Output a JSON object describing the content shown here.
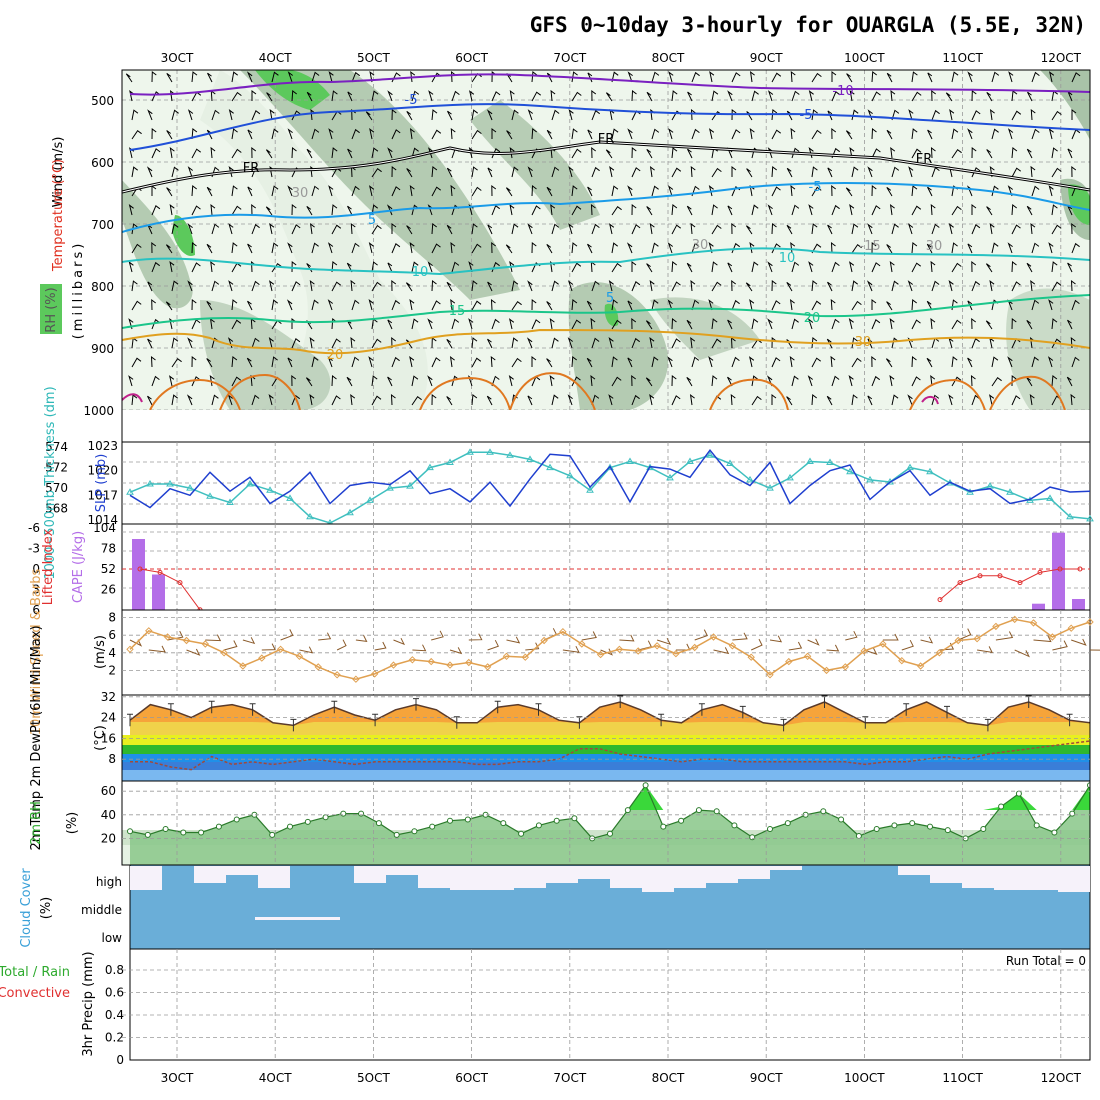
{
  "title": "GFS 0~10day 3-hourly for OUARGLA (5.5E, 32N)",
  "x_ticks": [
    "3OCT",
    "4OCT",
    "5OCT",
    "6OCT",
    "7OCT",
    "8OCT",
    "9OCT",
    "10OCT",
    "11OCT",
    "12OCT"
  ],
  "colors": {
    "frame": "#000000",
    "grid": "#9a9a9a",
    "rh_shade": "#5cc95c",
    "cloud": "#6aaed8",
    "cape_bar": "#b46ee8",
    "slp_line": "#1f3fcf",
    "thick_line": "#3fbfbf",
    "wind_speed": "#e0a050",
    "rh2m": "#3a9a3a"
  },
  "panels": {
    "upper": {
      "label_wind": "Wind (m/s)",
      "label_temp": "Temperature (°C)",
      "label_rh": "RH (%)",
      "ylabel": "(millibars)",
      "y_ticks": [
        "500",
        "600",
        "700",
        "800",
        "900",
        "1000"
      ],
      "contour_labels": [
        "-10",
        "-5",
        "-5",
        "FR",
        "FR",
        "FR",
        "-5",
        "5",
        "5",
        "10",
        "10",
        "-15",
        "15",
        "20",
        "20",
        "30",
        "30",
        "30",
        "30"
      ]
    },
    "thick_slp": {
      "label_left": "1000~500mb Thickness (dm)",
      "label_right": "SLP (mb)",
      "y_ticks_left": [
        "574",
        "572",
        "570",
        "568"
      ],
      "y_ticks_right": [
        "1023",
        "1020",
        "1017",
        "1014"
      ]
    },
    "cape": {
      "label_left": "Lifted Index",
      "label_right": "CAPE (J/kg)",
      "y_ticks_left": [
        "-6",
        "-3",
        "0",
        "3",
        "6"
      ],
      "y_ticks_right": [
        "104",
        "78",
        "52",
        "26"
      ]
    },
    "wind10": {
      "label": "10m Wind Speed & Barbs",
      "unit": "(m/s)",
      "y_ticks": [
        "8",
        "6",
        "4",
        "2"
      ]
    },
    "temp2m": {
      "label": "2m Temp 2m DewPt (6hr Min/Max)",
      "unit": "(°C)",
      "y_ticks": [
        "32",
        "24",
        "16",
        "8"
      ]
    },
    "rh2m": {
      "label": "2m RH",
      "unit": "(%)",
      "y_ticks": [
        "60",
        "40",
        "20"
      ]
    },
    "cloud": {
      "label": "Cloud Cover",
      "unit": "(%)",
      "levels": [
        "high",
        "middle",
        "low"
      ]
    },
    "precip": {
      "label_a": "Total / Rain",
      "label_b": "Convective",
      "ylabel": "3hr Precip (mm)",
      "y_ticks": [
        "0.8",
        "0.6",
        "0.4",
        "0.2",
        "0"
      ],
      "run_total": "Run Total = 0"
    }
  },
  "chart_data": [
    {
      "type": "line",
      "name": "thickness_slp",
      "series": [
        {
          "name": "1000~500mb Thickness (dm)",
          "values": [
            569.6,
            570.4,
            570.4,
            570.0,
            569.2,
            568.6,
            570.4,
            569.8,
            569.0,
            567.2,
            566.6,
            567.6,
            568.8,
            570.0,
            570.2,
            572.0,
            572.5,
            573.5,
            573.5,
            573.2,
            572.8,
            572.0,
            571.2,
            569.8,
            572.0,
            572.6,
            572.0,
            571.0,
            572.6,
            573.2,
            572.4,
            570.8,
            570.0,
            571.0,
            572.6,
            572.5,
            571.6,
            570.8,
            570.6,
            572.0,
            571.6,
            570.5,
            569.6,
            570.2,
            569.6,
            568.8,
            569.0,
            567.2,
            567.0
          ]
        },
        {
          "name": "SLP (mb)",
          "values": [
            1017.0,
            1015.5,
            1017.8,
            1017.0,
            1019.8,
            1017.5,
            1019.2,
            1016.0,
            1017.5,
            1019.8,
            1016.0,
            1018.2,
            1018.6,
            1018.3,
            1020.0,
            1017.2,
            1017.8,
            1016.2,
            1018.6,
            1015.7,
            1019.0,
            1022.0,
            1021.8,
            1018.0,
            1020.5,
            1016.2,
            1020.5,
            1020.2,
            1019.2,
            1022.5,
            1019.5,
            1018.2,
            1021.0,
            1016.0,
            1018.2,
            1020.0,
            1020.7,
            1016.5,
            1018.6,
            1020.0,
            1017.0,
            1018.6,
            1017.5,
            1017.8,
            1016.0,
            1016.5,
            1018.0,
            1017.4,
            1017.5
          ]
        }
      ]
    },
    {
      "type": "bar",
      "name": "cape_lifted_index",
      "series": [
        {
          "name": "CAPE (J/kg)",
          "values": [
            90,
            45,
            0,
            0,
            0,
            0,
            0,
            0,
            0,
            0,
            0,
            0,
            0,
            0,
            0,
            0,
            0,
            0,
            0,
            0,
            0,
            0,
            0,
            0,
            0,
            0,
            0,
            0,
            0,
            0,
            0,
            0,
            0,
            0,
            0,
            0,
            0,
            0,
            0,
            0,
            0,
            0,
            0,
            0,
            0,
            8,
            98,
            14
          ]
        },
        {
          "name": "Lifted Index",
          "values": [
            0,
            0.5,
            2,
            6,
            null,
            null,
            null,
            null,
            null,
            null,
            null,
            null,
            null,
            null,
            null,
            null,
            null,
            null,
            null,
            null,
            null,
            null,
            null,
            null,
            null,
            null,
            null,
            null,
            null,
            null,
            null,
            null,
            null,
            null,
            null,
            null,
            null,
            null,
            null,
            null,
            4.5,
            2,
            1,
            1,
            2,
            0.5,
            0,
            0
          ]
        }
      ]
    },
    {
      "type": "line",
      "name": "wind10_speed",
      "series": [
        {
          "name": "10m Wind Speed",
          "values": [
            4.4,
            6.5,
            5.8,
            5.4,
            5.0,
            4.0,
            2.5,
            3.4,
            4.4,
            3.6,
            2.4,
            1.5,
            1.0,
            1.6,
            2.6,
            3.2,
            3.0,
            2.6,
            2.9,
            2.4,
            3.6,
            3.5,
            5.4,
            6.4,
            5.0,
            3.8,
            4.4,
            4.2,
            4.8,
            3.9,
            4.6,
            5.8,
            4.8,
            3.5,
            1.5,
            3.0,
            3.6,
            2.0,
            2.4,
            4.2,
            5.0,
            3.1,
            2.5,
            4.0,
            5.4,
            5.6,
            7.0,
            7.8,
            7.4,
            5.8,
            6.8,
            7.5
          ]
        }
      ]
    },
    {
      "type": "area",
      "name": "temp2m",
      "series": [
        {
          "name": "2m Temp (°C)",
          "values": [
            23,
            29,
            27,
            24,
            28,
            29,
            27,
            22,
            21,
            25,
            28,
            25,
            23,
            27,
            29,
            27,
            22,
            22,
            28,
            29,
            27,
            23,
            22,
            28,
            30,
            27,
            23,
            22,
            27,
            29,
            26,
            22,
            21,
            27,
            30,
            26,
            22,
            22,
            27,
            30,
            26,
            22,
            21,
            28,
            30,
            27,
            23,
            22
          ]
        },
        {
          "name": "2m DewPt (°C)",
          "values": [
            7,
            7,
            5,
            4,
            9,
            6,
            7,
            6,
            7,
            8,
            7,
            6,
            7,
            7,
            7,
            7,
            7,
            6,
            6,
            7,
            7,
            8,
            12,
            12,
            10,
            9,
            8,
            7,
            8,
            8,
            7,
            7,
            7,
            7,
            7,
            7,
            6,
            7,
            7,
            8,
            9,
            8,
            10,
            11,
            12,
            13,
            14,
            15
          ]
        }
      ]
    },
    {
      "type": "area",
      "name": "rh2m",
      "series": [
        {
          "name": "2m RH (%)",
          "values": [
            26,
            23,
            28,
            25,
            25,
            30,
            36,
            40,
            23,
            30,
            34,
            38,
            41,
            41,
            33,
            23,
            26,
            30,
            35,
            36,
            40,
            33,
            24,
            31,
            35,
            37,
            20,
            24,
            44,
            65,
            30,
            35,
            44,
            43,
            31,
            21,
            28,
            33,
            40,
            43,
            36,
            22,
            28,
            31,
            33,
            30,
            27,
            20,
            28,
            47,
            58,
            31,
            25,
            41,
            65
          ]
        }
      ]
    },
    {
      "type": "heatmap",
      "name": "cloud_cover",
      "series": [
        {
          "name": "high",
          "values": [
            5,
            70,
            20,
            40,
            10,
            60,
            90,
            20,
            40,
            10,
            5,
            5,
            10,
            20,
            30,
            10,
            0,
            10,
            20,
            30,
            50,
            70,
            80,
            60,
            40,
            20,
            10,
            5,
            5,
            0
          ]
        },
        {
          "name": "middle",
          "values": [
            0,
            0,
            0,
            10,
            20,
            10,
            0,
            0,
            0,
            0,
            0,
            0,
            0,
            0,
            0,
            0,
            0,
            0,
            0,
            5,
            0,
            0,
            0,
            0,
            0,
            0,
            0,
            0,
            0,
            0
          ]
        },
        {
          "name": "low",
          "values": [
            0,
            0,
            0,
            0,
            0,
            0,
            0,
            0,
            0,
            0,
            0,
            0,
            0,
            0,
            0,
            0,
            0,
            0,
            0,
            0,
            0,
            0,
            0,
            0,
            0,
            0,
            0,
            0,
            0,
            0
          ]
        }
      ]
    },
    {
      "type": "bar",
      "name": "precip_3hr",
      "series": [
        {
          "name": "3hr Precip (mm)",
          "values": [
            0,
            0,
            0,
            0,
            0,
            0,
            0,
            0,
            0,
            0
          ]
        }
      ]
    }
  ]
}
